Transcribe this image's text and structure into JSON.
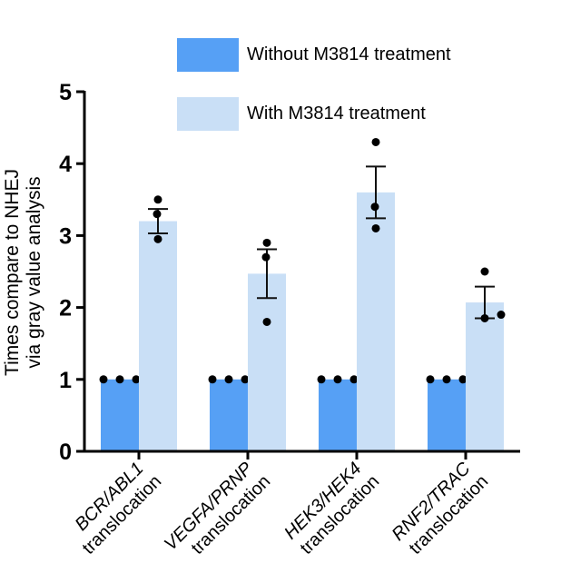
{
  "chart_data": {
    "type": "bar",
    "title": "",
    "xlabel": "",
    "ylabel_lines": [
      "Times compare to NHEJ",
      "via gray value analysis"
    ],
    "ylim": [
      0,
      5
    ],
    "yticks": [
      0,
      1,
      2,
      3,
      4,
      5
    ],
    "legend_position": "top",
    "categories": [
      {
        "gene": "BCR/ABL1",
        "suffix": "translocation"
      },
      {
        "gene": "VEGFA/PRNP",
        "suffix": "translocation"
      },
      {
        "gene": "HEK3/HEK4",
        "suffix": "translocation"
      },
      {
        "gene": "RNF2/TRAC",
        "suffix": "translocation"
      }
    ],
    "series": [
      {
        "name": "Without M3814 treatment",
        "color": "#56A0F5",
        "values": [
          1,
          1,
          1,
          1
        ],
        "error": [
          0,
          0,
          0,
          0
        ],
        "points": [
          [
            1,
            1,
            1
          ],
          [
            1,
            1,
            1
          ],
          [
            1,
            1,
            1
          ],
          [
            1,
            1,
            1
          ]
        ]
      },
      {
        "name": "With M3814 treatment",
        "color": "#C9DFF6",
        "values": [
          3.2,
          2.47,
          3.6,
          2.07
        ],
        "error": [
          0.17,
          0.34,
          0.36,
          0.22
        ],
        "points": [
          [
            3.5,
            3.3,
            2.95
          ],
          [
            2.9,
            2.7,
            1.8
          ],
          [
            4.3,
            3.4,
            3.1
          ],
          [
            2.5,
            1.85,
            1.9
          ]
        ]
      }
    ],
    "grid": false
  }
}
